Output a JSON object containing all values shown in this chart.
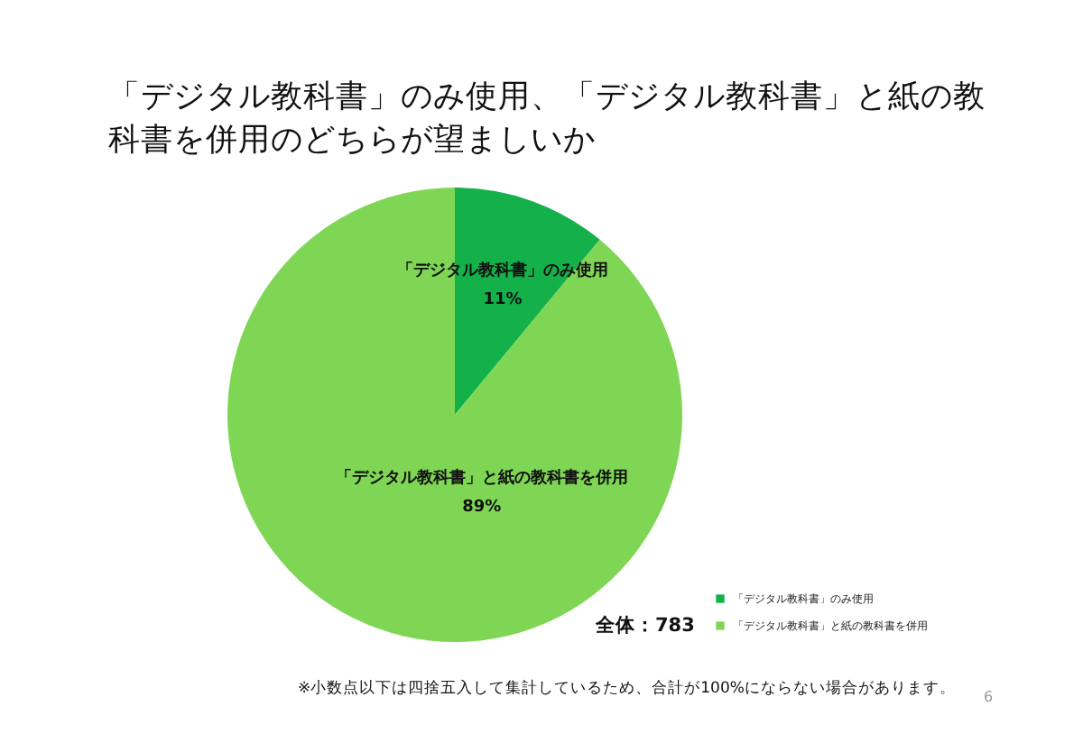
{
  "chart_data": {
    "type": "pie",
    "title": "「デジタル教科書」のみ使用、「デジタル教科書」と紙の教科書を併用のどちらが望ましいか",
    "categories": [
      "「デジタル教科書」のみ使用",
      "「デジタル教科書」と紙の教科書を併用"
    ],
    "values": [
      11,
      89
    ],
    "colors": [
      "#14b14b",
      "#7fd654"
    ],
    "value_labels": [
      "11%",
      "89%"
    ],
    "legend": "bottom right",
    "annotations": [
      "全体：783",
      "※小数点以下は四捨五入して集計しているため、合計が100%にならない場合があります。",
      "6"
    ]
  }
}
